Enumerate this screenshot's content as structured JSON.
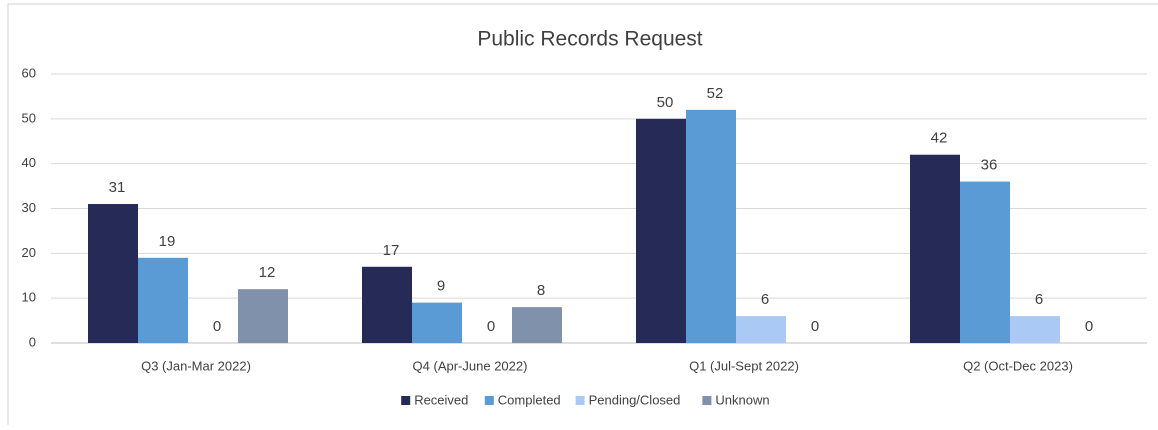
{
  "chart_data": {
    "type": "bar",
    "title": "Public Records Request",
    "categories": [
      "Q3 (Jan-Mar 2022)",
      "Q4 (Apr-June 2022)",
      "Q1  (Jul-Sept 2022)",
      "Q2 (Oct-Dec 2023)"
    ],
    "series": [
      {
        "name": "Received",
        "color": "#262a56",
        "values": [
          31,
          17,
          50,
          42
        ]
      },
      {
        "name": "Completed",
        "color": "#5b9bd5",
        "values": [
          19,
          9,
          52,
          36
        ]
      },
      {
        "name": "Pending/Closed",
        "color": "#abc9f5",
        "values": [
          0,
          0,
          6,
          6
        ]
      },
      {
        "name": "Unknown",
        "color": "#8091ab",
        "values": [
          12,
          8,
          0,
          0
        ]
      }
    ],
    "ylim": [
      0,
      60
    ],
    "yticks": [
      0,
      10,
      20,
      30,
      40,
      50,
      60
    ],
    "grid": true,
    "legend": "bottom"
  }
}
